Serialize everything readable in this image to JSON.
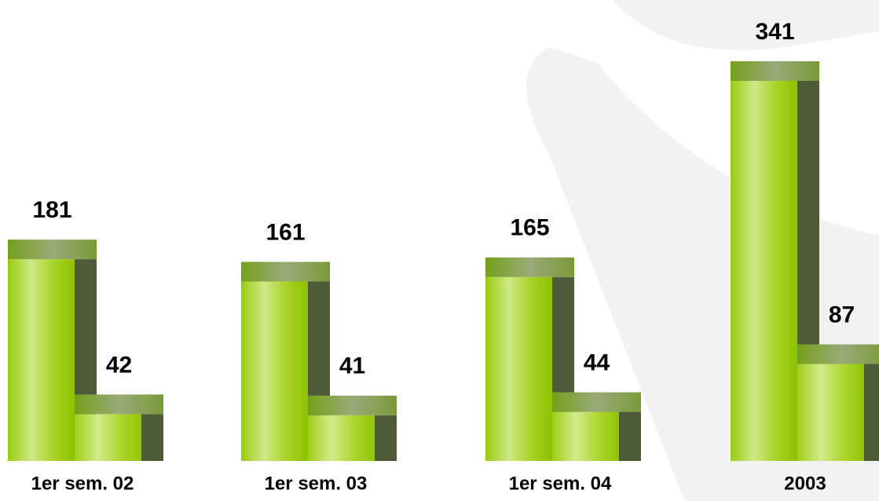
{
  "chart_data": {
    "type": "bar",
    "categories": [
      "1er sem. 02",
      "1er sem. 03",
      "1er sem. 04",
      "2003"
    ],
    "series": [
      {
        "color": "#9acc10",
        "values": [
          181,
          161,
          165,
          341
        ]
      },
      {
        "color": "#b4dc3c",
        "values": [
          42,
          41,
          44,
          87
        ]
      }
    ]
  }
}
